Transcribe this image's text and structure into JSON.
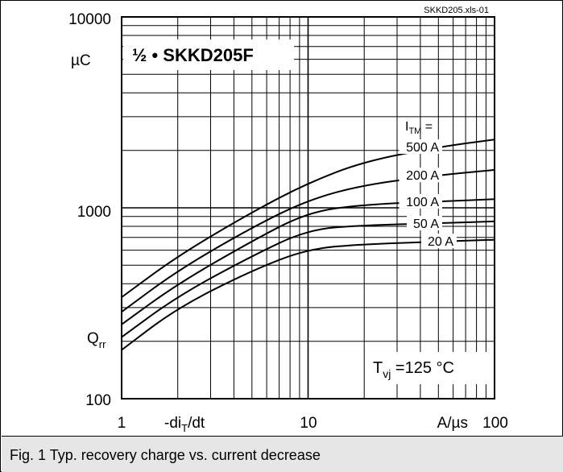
{
  "chart_data": {
    "type": "line",
    "file_tag": "SKKD205.xls-01",
    "inset_title": "½ • SKKD205F",
    "x_scale": "log",
    "y_scale": "log",
    "xlim": [
      1,
      100
    ],
    "ylim": [
      100,
      10000
    ],
    "grid": true,
    "x_tick_labels": [
      "1",
      "10",
      "100"
    ],
    "x_label_main": "-di",
    "x_label_sub": "T",
    "x_label_tail": "/dt",
    "x_unit": "A/µs",
    "y_tick_labels": [
      "100",
      "1000",
      "10000"
    ],
    "y_unit": "µC",
    "y_label_main": "Q",
    "y_label_sub": "rr",
    "legend_header_main": "I",
    "legend_header_sub": "TM",
    "legend_header_tail": " =",
    "condition_main": "T",
    "condition_sub": "vj",
    "condition_tail": " =125 °C",
    "x": [
      1,
      2,
      5,
      10,
      20,
      50,
      100
    ],
    "series": [
      {
        "name": "500 A",
        "values": [
          340,
          560,
          950,
          1350,
          1750,
          2080,
          2280
        ]
      },
      {
        "name": "200 A",
        "values": [
          285,
          470,
          790,
          1100,
          1320,
          1480,
          1580
        ]
      },
      {
        "name": "100 A",
        "values": [
          245,
          400,
          670,
          950,
          1040,
          1080,
          1110
        ]
      },
      {
        "name": "50 A",
        "values": [
          210,
          345,
          560,
          770,
          810,
          830,
          850
        ]
      },
      {
        "name": "20 A",
        "values": [
          180,
          300,
          470,
          610,
          645,
          665,
          680
        ]
      }
    ]
  },
  "caption": "Fig. 1 Typ. recovery charge vs. current decrease"
}
